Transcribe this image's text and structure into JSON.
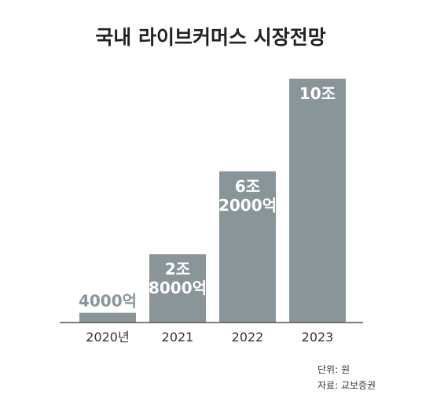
{
  "chart_data": {
    "type": "bar",
    "title": "국내 라이브커머스 시장전망",
    "categories": [
      "2020년",
      "2021",
      "2022",
      "2023"
    ],
    "values": [
      0.4,
      2.8,
      6.2,
      10
    ],
    "data_labels": [
      [
        "4000억"
      ],
      [
        "2조",
        "8000억"
      ],
      [
        "6조",
        "2000억"
      ],
      [
        "10조"
      ]
    ],
    "unit_note": "단위: 원",
    "source_note": "자료: 교보증권",
    "bar_color": "#8a9599",
    "axis_color": "#555555",
    "ylim": [
      0,
      10
    ],
    "grid": false
  }
}
